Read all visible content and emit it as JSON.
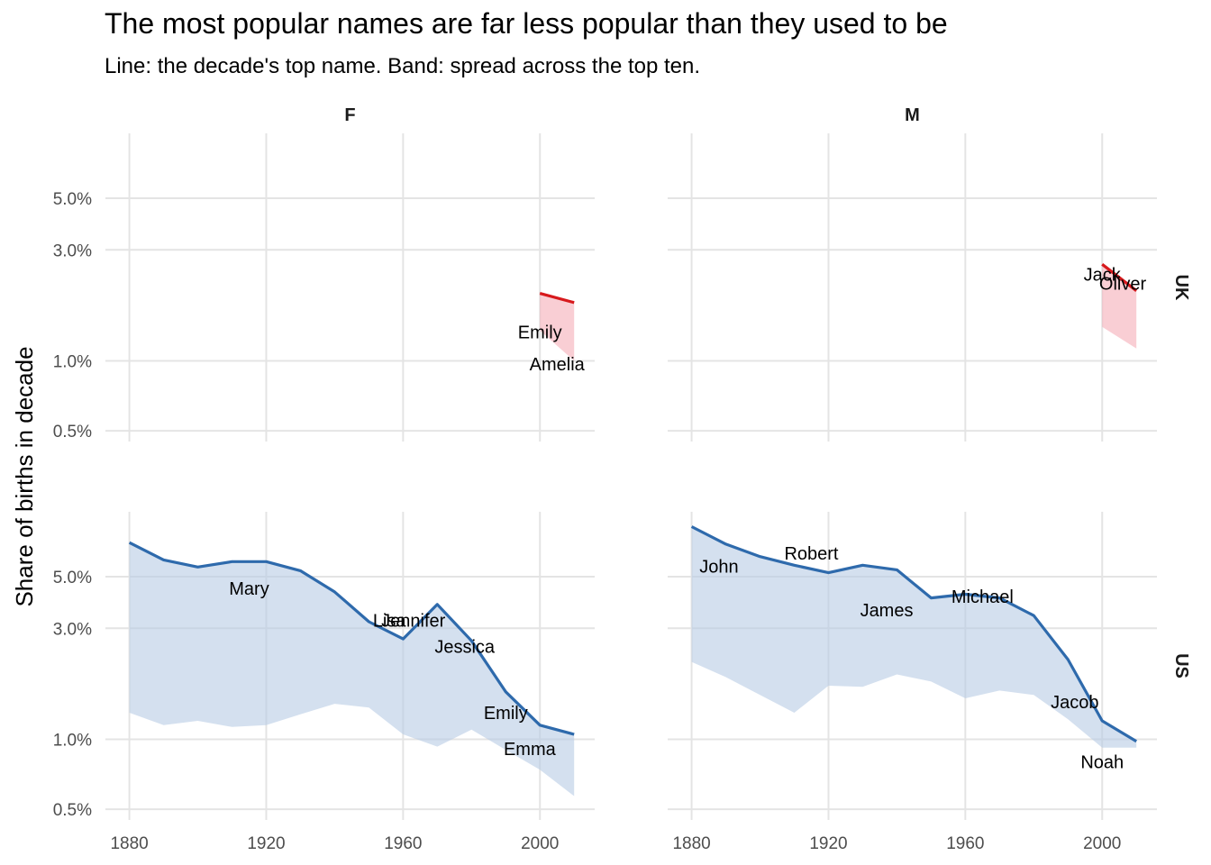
{
  "title": "The most popular names are far less popular than they used to be",
  "subtitle": "Line: the decade's top name. Band: spread across the top ten.",
  "colors": {
    "uk_line": "#d7191c",
    "uk_band": "#f4a6b0",
    "us_line": "#2e6aac",
    "us_band": "#b7cbe4",
    "grid": "#e4e4e4"
  },
  "chart_data": {
    "type": "area",
    "facets": {
      "columns": [
        "F",
        "M"
      ],
      "rows": [
        "UK",
        "US"
      ]
    },
    "ylabel": "Share of births in decade",
    "xlabel": "",
    "y_scale": "log",
    "ylim": [
      0.45,
      9.5
    ],
    "xlim": [
      1873,
      2016
    ],
    "x_ticks": [
      1880,
      1920,
      1960,
      2000
    ],
    "y_ticks": [
      0.5,
      1.0,
      3.0,
      5.0
    ],
    "y_tick_labels": [
      "0.5%",
      "1.0%",
      "3.0%",
      "5.0%"
    ],
    "grid": true,
    "legend": "none",
    "panels": [
      {
        "row": "UK",
        "col": "F",
        "x": [
          2000,
          2010
        ],
        "top_name_share": [
          1.95,
          1.78
        ],
        "band_low": [
          1.35,
          1.0
        ],
        "band_high": [
          1.95,
          1.78
        ],
        "labels": [
          {
            "name": "Emily",
            "x": 2000,
            "y": 1.33
          },
          {
            "name": "Amelia",
            "x": 2005,
            "y": 0.97
          }
        ]
      },
      {
        "row": "UK",
        "col": "M",
        "x": [
          2000,
          2010
        ],
        "top_name_share": [
          2.6,
          2.0
        ],
        "band_low": [
          1.4,
          1.13
        ],
        "band_high": [
          2.6,
          2.0
        ],
        "labels": [
          {
            "name": "Jack",
            "x": 2000,
            "y": 2.35
          },
          {
            "name": "Oliver",
            "x": 2006,
            "y": 2.15
          }
        ]
      },
      {
        "row": "US",
        "col": "F",
        "x": [
          1880,
          1890,
          1900,
          1910,
          1920,
          1930,
          1940,
          1950,
          1960,
          1970,
          1980,
          1990,
          2000,
          2010
        ],
        "top_name_share": [
          7.0,
          5.9,
          5.5,
          5.8,
          5.8,
          5.3,
          4.3,
          3.2,
          2.7,
          3.8,
          2.65,
          1.6,
          1.15,
          1.05
        ],
        "band_low": [
          1.3,
          1.15,
          1.2,
          1.13,
          1.15,
          1.28,
          1.42,
          1.37,
          1.05,
          0.93,
          1.1,
          0.9,
          0.74,
          0.57
        ],
        "labels": [
          {
            "name": "Mary",
            "x": 1915,
            "y": 4.45
          },
          {
            "name": "Lisa",
            "x": 1956,
            "y": 3.25
          },
          {
            "name": "Jennifer",
            "x": 1963,
            "y": 3.25
          },
          {
            "name": "Jessica",
            "x": 1978,
            "y": 2.5
          },
          {
            "name": "Emily",
            "x": 1990,
            "y": 1.3
          },
          {
            "name": "Emma",
            "x": 1997,
            "y": 0.91
          }
        ]
      },
      {
        "row": "US",
        "col": "M",
        "x": [
          1880,
          1890,
          1900,
          1910,
          1920,
          1930,
          1940,
          1950,
          1960,
          1970,
          1980,
          1990,
          2000,
          2010
        ],
        "top_name_share": [
          8.2,
          6.9,
          6.1,
          5.6,
          5.2,
          5.6,
          5.35,
          4.05,
          4.2,
          4.05,
          3.4,
          2.2,
          1.2,
          0.98
        ],
        "band_low": [
          2.15,
          1.85,
          1.55,
          1.3,
          1.7,
          1.68,
          1.9,
          1.77,
          1.5,
          1.62,
          1.55,
          1.22,
          0.92,
          0.92
        ],
        "labels": [
          {
            "name": "John",
            "x": 1888,
            "y": 5.55
          },
          {
            "name": "Robert",
            "x": 1915,
            "y": 6.3
          },
          {
            "name": "James",
            "x": 1937,
            "y": 3.6
          },
          {
            "name": "Michael",
            "x": 1965,
            "y": 4.1
          },
          {
            "name": "Jacob",
            "x": 1992,
            "y": 1.45
          },
          {
            "name": "Noah",
            "x": 2000,
            "y": 0.8
          }
        ]
      }
    ]
  }
}
